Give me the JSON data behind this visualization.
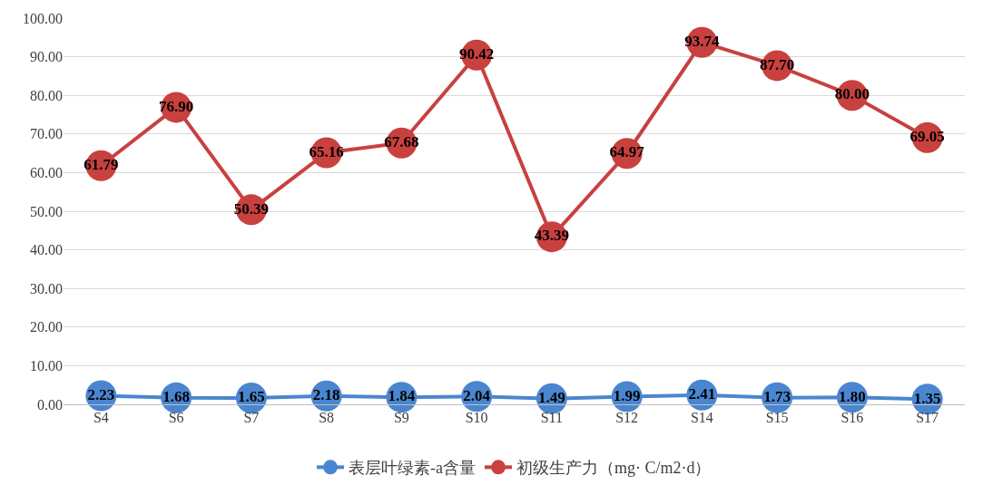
{
  "chart_data": {
    "type": "line",
    "categories": [
      "S4",
      "S6",
      "S7",
      "S8",
      "S9",
      "S10",
      "S11",
      "S12",
      "S14",
      "S15",
      "S16",
      "S17"
    ],
    "series": [
      {
        "name": "表层叶绿素-a含量",
        "color": "#4a86d0",
        "values": [
          2.23,
          1.68,
          1.65,
          2.18,
          1.84,
          2.04,
          1.49,
          1.99,
          2.41,
          1.73,
          1.8,
          1.35
        ],
        "value_labels": [
          "2.23",
          "1.68",
          "1.65",
          "2.18",
          "1.84",
          "2.04",
          "1.49",
          "1.99",
          "2.41",
          "1.73",
          "1.80",
          "1.35"
        ]
      },
      {
        "name": "初级生产力（mg· C/m2·d）",
        "color": "#c8413f",
        "values": [
          61.79,
          76.9,
          50.39,
          65.16,
          67.68,
          90.42,
          43.39,
          64.97,
          93.74,
          87.7,
          80.0,
          69.05
        ],
        "value_labels": [
          "61.79",
          "76.90",
          "50.39",
          "65.16",
          "67.68",
          "90.42",
          "43.39",
          "64.97",
          "93.74",
          "87.70",
          "80.00",
          "69.05"
        ]
      }
    ],
    "ylim": [
      0,
      100
    ],
    "yticks": [
      {
        "value": 0,
        "label": "0.00"
      },
      {
        "value": 10,
        "label": "10.00"
      },
      {
        "value": 20,
        "label": "20.00"
      },
      {
        "value": 30,
        "label": "30.00"
      },
      {
        "value": 40,
        "label": "40.00"
      },
      {
        "value": 50,
        "label": "50.00"
      },
      {
        "value": 60,
        "label": "60.00"
      },
      {
        "value": 70,
        "label": "70.00"
      },
      {
        "value": 80,
        "label": "80.00"
      },
      {
        "value": 90,
        "label": "90.00"
      },
      {
        "value": 100,
        "label": "100.00"
      }
    ],
    "grid": "y",
    "legend": "bottom",
    "marker": "circle",
    "line_style": "solid"
  }
}
